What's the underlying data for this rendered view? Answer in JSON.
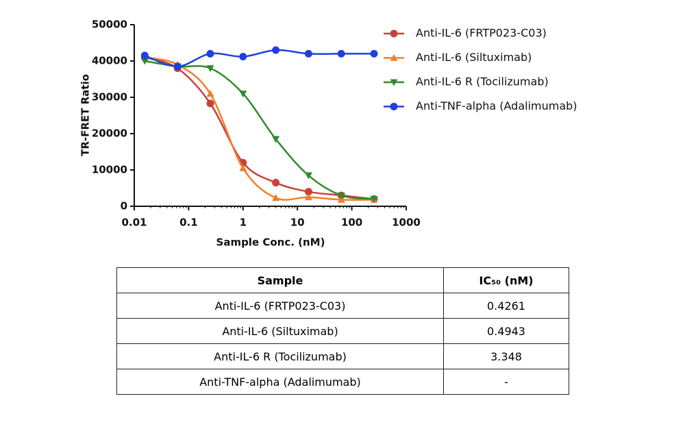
{
  "chart_data": {
    "type": "scatter",
    "x_label": "Sample Conc. (nM)",
    "y_label": "TR-FRET Ratio",
    "x": [
      0.0156,
      0.0625,
      0.25,
      1,
      4,
      16,
      64,
      256
    ],
    "xscale": "log",
    "xlim": [
      0.01,
      1000
    ],
    "xticks": [
      0.01,
      0.1,
      1,
      10,
      100,
      1000
    ],
    "ylim": [
      0,
      50000
    ],
    "yticks": [
      0,
      10000,
      20000,
      30000,
      40000,
      50000
    ],
    "legend": "top-right",
    "series": [
      {
        "name": "Anti-IL-6 (FRTP023-C03)",
        "color": "#c8423c",
        "marker": "circle",
        "values": [
          41000,
          38000,
          28300,
          12000,
          6500,
          4000,
          3000,
          2000
        ]
      },
      {
        "name": "Anti-IL-6 (Siltuximab)",
        "color": "#f07f2a",
        "marker": "triangle-up",
        "values": [
          41000,
          39000,
          31000,
          10500,
          2300,
          2500,
          1800,
          1800
        ]
      },
      {
        "name": "Anti-IL-6 R (Tocilizumab)",
        "color": "#2e8b2e",
        "marker": "triangle-down",
        "values": [
          40000,
          38500,
          38000,
          31000,
          18500,
          8500,
          3000,
          2000
        ]
      },
      {
        "name": "Anti-TNF-alpha (Adalimumab)",
        "color": "#1f3fe0",
        "marker": "circle",
        "values": [
          41500,
          38500,
          42000,
          41200,
          43000,
          42000,
          42000,
          42000
        ]
      }
    ]
  },
  "table": {
    "header": [
      "Sample",
      "IC₅₀ (nM)"
    ],
    "rows": [
      [
        "Anti-IL-6 (FRTP023-C03)",
        "0.4261"
      ],
      [
        "Anti-IL-6 (Siltuximab)",
        "0.4943"
      ],
      [
        "Anti-IL-6 R (Tocilizumab)",
        "3.348"
      ],
      [
        "Anti-TNF-alpha (Adalimumab)",
        "-"
      ]
    ]
  }
}
